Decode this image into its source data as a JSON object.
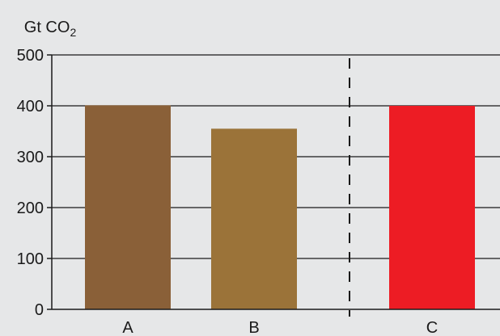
{
  "chart_data": {
    "type": "bar",
    "ylabel_text": "Gt CO",
    "ylabel_subscript": "2",
    "categories": [
      "A",
      "B",
      "C"
    ],
    "values": [
      401,
      355,
      400
    ],
    "colors": [
      "#8a6038",
      "#9b7339",
      "#ed1c24"
    ],
    "yticks": [
      0,
      100,
      200,
      300,
      400,
      500
    ],
    "ylim": [
      0,
      500
    ],
    "grid": true,
    "separator": "dashed vertical line between B and C",
    "background": "#e6e7e8"
  }
}
